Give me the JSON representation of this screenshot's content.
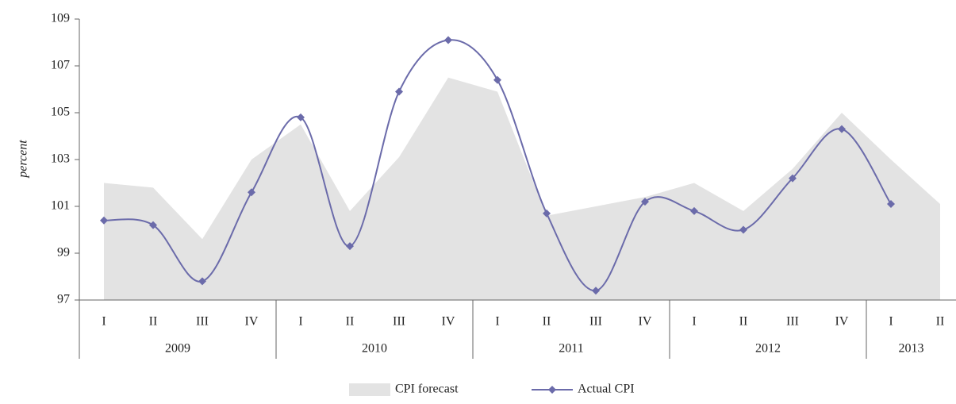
{
  "chart_data": {
    "type": "line",
    "y_label": "percent",
    "categories": [
      "I",
      "II",
      "III",
      "IV",
      "I",
      "II",
      "III",
      "IV",
      "I",
      "II",
      "III",
      "IV",
      "I",
      "II",
      "III",
      "IV",
      "I",
      "II"
    ],
    "years": [
      "2009",
      "2010",
      "2011",
      "2012",
      "2013"
    ],
    "series": [
      {
        "name": "CPI forecast",
        "kind": "area",
        "color": "#e3e3e3",
        "values": [
          102.0,
          101.8,
          99.6,
          103.0,
          104.5,
          100.8,
          103.1,
          106.5,
          105.9,
          100.6,
          101.0,
          101.4,
          102.0,
          100.8,
          102.6,
          105.0,
          103.0,
          101.1
        ]
      },
      {
        "name": "Actual CPI",
        "kind": "line",
        "color": "#6b6baa",
        "values": [
          100.4,
          100.2,
          97.8,
          101.6,
          104.8,
          99.3,
          105.9,
          108.1,
          106.4,
          100.7,
          97.4,
          101.2,
          100.8,
          100.0,
          102.2,
          104.3,
          101.1,
          null
        ]
      }
    ],
    "ylim": [
      97,
      109
    ],
    "yticks": [
      97,
      99,
      101,
      103,
      105,
      107,
      109
    ]
  }
}
